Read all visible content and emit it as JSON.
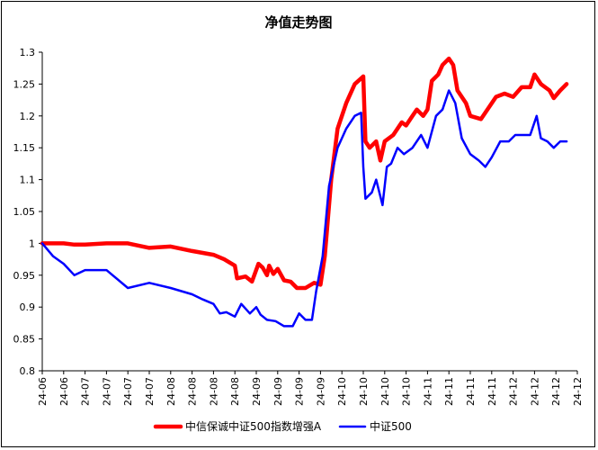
{
  "chart_data": {
    "type": "line",
    "title": "净值走势图",
    "xlabel": "",
    "ylabel": "",
    "ylim": [
      0.8,
      1.3
    ],
    "y_ticks": [
      "1.3",
      "1.25",
      "1.2",
      "1.15",
      "1.1",
      "1.05",
      "1",
      "0.95",
      "0.9",
      "0.85",
      "0.8"
    ],
    "x_tick_labels": [
      "24-06",
      "24-06",
      "24-07",
      "24-07",
      "24-07",
      "24-07",
      "24-08",
      "24-08",
      "24-08",
      "24-08",
      "24-09",
      "24-09",
      "24-09",
      "24-09",
      "24-10",
      "24-10",
      "24-10",
      "24-10",
      "24-11",
      "24-11",
      "24-11",
      "24-11",
      "24-12",
      "24-12",
      "24-12",
      "24-12"
    ],
    "grid": false,
    "legend_position": "bottom",
    "series": [
      {
        "name": "中信保诚中证500指数增强A",
        "color": "#ff0000",
        "values": [
          [
            0,
            1.0
          ],
          [
            1,
            1.0
          ],
          [
            1.5,
            0.998
          ],
          [
            2,
            0.998
          ],
          [
            3,
            1.0
          ],
          [
            4,
            1.0
          ],
          [
            5,
            0.993
          ],
          [
            6,
            0.995
          ],
          [
            7,
            0.988
          ],
          [
            8,
            0.982
          ],
          [
            8.5,
            0.975
          ],
          [
            9,
            0.965
          ],
          [
            9.1,
            0.945
          ],
          [
            9.5,
            0.948
          ],
          [
            9.8,
            0.94
          ],
          [
            10.1,
            0.968
          ],
          [
            10.3,
            0.962
          ],
          [
            10.5,
            0.95
          ],
          [
            10.6,
            0.965
          ],
          [
            10.8,
            0.952
          ],
          [
            11,
            0.96
          ],
          [
            11.3,
            0.942
          ],
          [
            11.6,
            0.94
          ],
          [
            11.9,
            0.93
          ],
          [
            12.3,
            0.93
          ],
          [
            12.7,
            0.938
          ],
          [
            13.0,
            0.935
          ],
          [
            13.2,
            0.98
          ],
          [
            13.5,
            1.1
          ],
          [
            13.8,
            1.18
          ],
          [
            14.2,
            1.22
          ],
          [
            14.6,
            1.25
          ],
          [
            15.0,
            1.262
          ],
          [
            15.1,
            1.16
          ],
          [
            15.3,
            1.15
          ],
          [
            15.6,
            1.16
          ],
          [
            15.8,
            1.13
          ],
          [
            16.0,
            1.16
          ],
          [
            16.4,
            1.17
          ],
          [
            16.8,
            1.19
          ],
          [
            17.0,
            1.185
          ],
          [
            17.3,
            1.2
          ],
          [
            17.5,
            1.21
          ],
          [
            17.8,
            1.2
          ],
          [
            18.0,
            1.21
          ],
          [
            18.2,
            1.255
          ],
          [
            18.5,
            1.265
          ],
          [
            18.7,
            1.28
          ],
          [
            19.0,
            1.29
          ],
          [
            19.2,
            1.28
          ],
          [
            19.4,
            1.24
          ],
          [
            19.8,
            1.22
          ],
          [
            20.0,
            1.2
          ],
          [
            20.5,
            1.195
          ],
          [
            20.9,
            1.215
          ],
          [
            21.2,
            1.23
          ],
          [
            21.6,
            1.235
          ],
          [
            22.0,
            1.23
          ],
          [
            22.4,
            1.245
          ],
          [
            22.8,
            1.245
          ],
          [
            23.0,
            1.265
          ],
          [
            23.3,
            1.25
          ],
          [
            23.7,
            1.24
          ],
          [
            23.9,
            1.228
          ],
          [
            24.2,
            1.24
          ],
          [
            24.5,
            1.25
          ]
        ]
      },
      {
        "name": "中证500",
        "color": "#0000ff",
        "values": [
          [
            0,
            1.0
          ],
          [
            0.5,
            0.98
          ],
          [
            1,
            0.968
          ],
          [
            1.5,
            0.95
          ],
          [
            2,
            0.958
          ],
          [
            3,
            0.958
          ],
          [
            4,
            0.93
          ],
          [
            5,
            0.938
          ],
          [
            6,
            0.93
          ],
          [
            7,
            0.92
          ],
          [
            7.5,
            0.912
          ],
          [
            8,
            0.905
          ],
          [
            8.3,
            0.89
          ],
          [
            8.6,
            0.892
          ],
          [
            9.0,
            0.885
          ],
          [
            9.3,
            0.905
          ],
          [
            9.7,
            0.89
          ],
          [
            10.0,
            0.9
          ],
          [
            10.2,
            0.888
          ],
          [
            10.5,
            0.88
          ],
          [
            10.9,
            0.878
          ],
          [
            11.3,
            0.87
          ],
          [
            11.7,
            0.87
          ],
          [
            12.0,
            0.89
          ],
          [
            12.3,
            0.88
          ],
          [
            12.6,
            0.88
          ],
          [
            12.8,
            0.925
          ],
          [
            13.1,
            0.98
          ],
          [
            13.4,
            1.09
          ],
          [
            13.8,
            1.15
          ],
          [
            14.2,
            1.18
          ],
          [
            14.6,
            1.2
          ],
          [
            14.9,
            1.205
          ],
          [
            15.0,
            1.12
          ],
          [
            15.1,
            1.07
          ],
          [
            15.4,
            1.08
          ],
          [
            15.6,
            1.1
          ],
          [
            15.9,
            1.06
          ],
          [
            16.1,
            1.12
          ],
          [
            16.3,
            1.125
          ],
          [
            16.6,
            1.15
          ],
          [
            16.9,
            1.14
          ],
          [
            17.3,
            1.15
          ],
          [
            17.7,
            1.17
          ],
          [
            18.0,
            1.15
          ],
          [
            18.4,
            1.2
          ],
          [
            18.7,
            1.21
          ],
          [
            19.0,
            1.24
          ],
          [
            19.3,
            1.22
          ],
          [
            19.6,
            1.165
          ],
          [
            20.0,
            1.14
          ],
          [
            20.4,
            1.13
          ],
          [
            20.7,
            1.12
          ],
          [
            21.0,
            1.135
          ],
          [
            21.4,
            1.16
          ],
          [
            21.8,
            1.16
          ],
          [
            22.1,
            1.17
          ],
          [
            22.5,
            1.17
          ],
          [
            22.8,
            1.17
          ],
          [
            23.1,
            1.2
          ],
          [
            23.3,
            1.165
          ],
          [
            23.6,
            1.16
          ],
          [
            23.9,
            1.15
          ],
          [
            24.2,
            1.16
          ],
          [
            24.5,
            1.16
          ]
        ]
      }
    ]
  }
}
